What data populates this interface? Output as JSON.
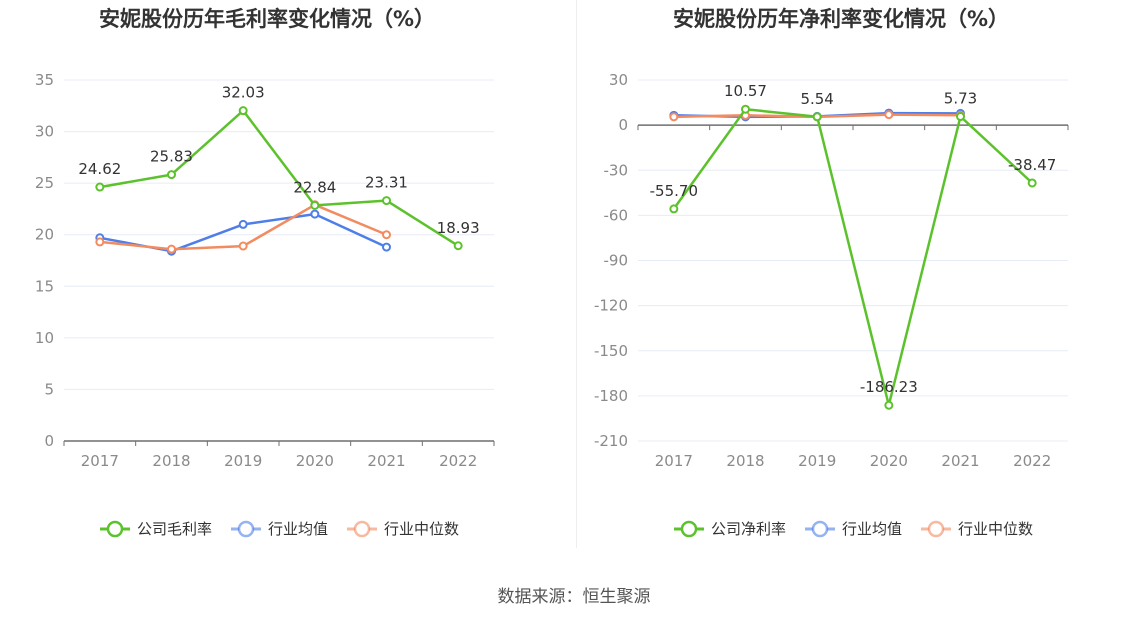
{
  "colors": {
    "primary": "#5cc22c",
    "average": "#4f7ee8",
    "median": "#f28b60",
    "grid": "#e8ecf6",
    "axis": "#6f6f6f"
  },
  "source_note": "数据来源：恒生聚源",
  "chart_data": [
    {
      "type": "line",
      "title": "安妮股份历年毛利率变化情况（%）",
      "categories": [
        "2017",
        "2018",
        "2019",
        "2020",
        "2021",
        "2022"
      ],
      "yticks": [
        0,
        5,
        10,
        15,
        20,
        25,
        30,
        35
      ],
      "ylim": [
        0,
        35
      ],
      "xlabel": "",
      "ylabel": "",
      "grid": true,
      "legend_position": "bottom",
      "series": [
        {
          "name": "公司毛利率",
          "color": "#5cc22c",
          "values": [
            24.62,
            25.83,
            32.03,
            22.84,
            23.31,
            18.93
          ],
          "labels": [
            "24.62",
            "25.83",
            "32.03",
            "22.84",
            "23.31",
            "18.93"
          ]
        },
        {
          "name": "行业均值",
          "color": "#4f7ee8",
          "values": [
            19.7,
            18.4,
            21.0,
            22.0,
            18.8,
            null
          ]
        },
        {
          "name": "行业中位数",
          "color": "#f28b60",
          "values": [
            19.3,
            18.6,
            18.9,
            22.9,
            20.0,
            null
          ]
        }
      ]
    },
    {
      "type": "line",
      "title": "安妮股份历年净利率变化情况（%）",
      "categories": [
        "2017",
        "2018",
        "2019",
        "2020",
        "2021",
        "2022"
      ],
      "yticks": [
        -210,
        -180,
        -150,
        -120,
        -90,
        -60,
        -30,
        0,
        30
      ],
      "ylim": [
        -210,
        30
      ],
      "xlabel": "",
      "ylabel": "",
      "grid": true,
      "legend_position": "bottom",
      "series": [
        {
          "name": "公司净利率",
          "color": "#5cc22c",
          "values": [
            -55.7,
            10.57,
            5.54,
            -186.23,
            5.73,
            -38.47
          ],
          "labels": [
            "-55.70",
            "10.57",
            "5.54",
            "-186.23",
            "5.73",
            "-38.47"
          ]
        },
        {
          "name": "行业均值",
          "color": "#4f7ee8",
          "values": [
            6.5,
            5.5,
            5.8,
            8.0,
            7.8,
            null
          ]
        },
        {
          "name": "行业中位数",
          "color": "#f28b60",
          "values": [
            5.5,
            6.5,
            5.5,
            7.0,
            6.5,
            null
          ]
        }
      ]
    }
  ]
}
